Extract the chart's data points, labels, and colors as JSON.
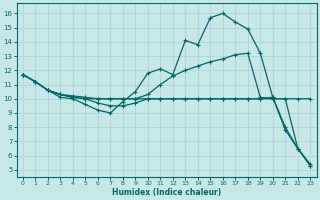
{
  "xlabel": "Humidex (Indice chaleur)",
  "bg_color": "#c8e8e8",
  "grid_color": "#b0d8d8",
  "line_color": "#006666",
  "xlim": [
    -0.5,
    23.5
  ],
  "ylim": [
    4.5,
    16.7
  ],
  "xticks": [
    0,
    1,
    2,
    3,
    4,
    5,
    6,
    7,
    8,
    9,
    10,
    11,
    12,
    13,
    14,
    15,
    16,
    17,
    18,
    19,
    20,
    21,
    22,
    23
  ],
  "yticks": [
    5,
    6,
    7,
    8,
    9,
    10,
    11,
    12,
    13,
    14,
    15,
    16
  ],
  "line1_x": [
    0,
    1,
    2,
    3,
    4,
    5,
    6,
    7,
    8,
    9,
    10,
    11,
    12,
    13,
    14,
    15,
    16,
    17,
    18,
    19,
    20,
    21,
    22,
    23
  ],
  "line1_y": [
    11.7,
    11.2,
    10.6,
    10.1,
    10.0,
    9.6,
    9.2,
    9.0,
    9.8,
    10.5,
    11.8,
    12.1,
    11.7,
    14.1,
    13.8,
    15.7,
    16.0,
    15.4,
    14.9,
    13.2,
    10.1,
    7.8,
    6.5,
    5.4
  ],
  "line2_x": [
    0,
    1,
    2,
    3,
    4,
    5,
    6,
    7,
    8,
    9,
    10,
    11,
    12,
    13,
    14,
    15,
    16,
    17,
    18,
    19,
    20,
    21,
    22,
    23
  ],
  "line2_y": [
    11.7,
    11.2,
    10.6,
    10.3,
    10.2,
    10.1,
    10.0,
    10.0,
    10.0,
    10.0,
    10.3,
    11.0,
    11.6,
    12.0,
    12.3,
    12.6,
    12.8,
    13.1,
    13.2,
    10.1,
    10.0,
    10.0,
    10.0,
    10.0
  ],
  "line3_x": [
    0,
    1,
    2,
    3,
    4,
    5,
    6,
    7,
    8,
    9,
    10,
    11,
    12,
    13,
    14,
    15,
    16,
    17,
    18,
    19,
    20,
    21,
    22,
    23
  ],
  "line3_y": [
    11.7,
    11.2,
    10.6,
    10.3,
    10.1,
    10.0,
    10.0,
    10.0,
    10.0,
    10.0,
    10.0,
    10.0,
    10.0,
    10.0,
    10.0,
    10.0,
    10.0,
    10.0,
    10.0,
    10.0,
    10.1,
    8.0,
    6.5,
    5.3
  ],
  "line4_x": [
    0,
    1,
    2,
    3,
    4,
    5,
    6,
    7,
    8,
    9,
    10,
    11,
    12,
    13,
    14,
    15,
    16,
    17,
    18,
    19,
    20,
    21,
    22,
    23
  ],
  "line4_y": [
    11.7,
    11.2,
    10.6,
    10.3,
    10.1,
    10.0,
    9.7,
    9.5,
    9.5,
    9.7,
    10.0,
    10.0,
    10.0,
    10.0,
    10.0,
    10.0,
    10.0,
    10.0,
    10.0,
    10.0,
    10.0,
    10.0,
    6.5,
    5.3
  ]
}
